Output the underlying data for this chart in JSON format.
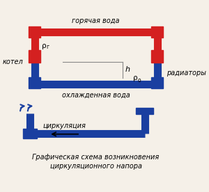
{
  "bg_color": "#f5f0e8",
  "red_color": "#d42020",
  "blue_color": "#1a3fa0",
  "line_width": 6,
  "title_text": "Графическая схема возникновения\nциркуляционного напора",
  "label_goryachaya": "горячая вода",
  "label_ohlazhd": "охлажденная вода",
  "label_kotel": "котел",
  "label_radiatory": "радиаторы",
  "label_h": "h",
  "label_rho_g": "г",
  "label_rho_o": "о",
  "label_tsirk": "циркуляция"
}
